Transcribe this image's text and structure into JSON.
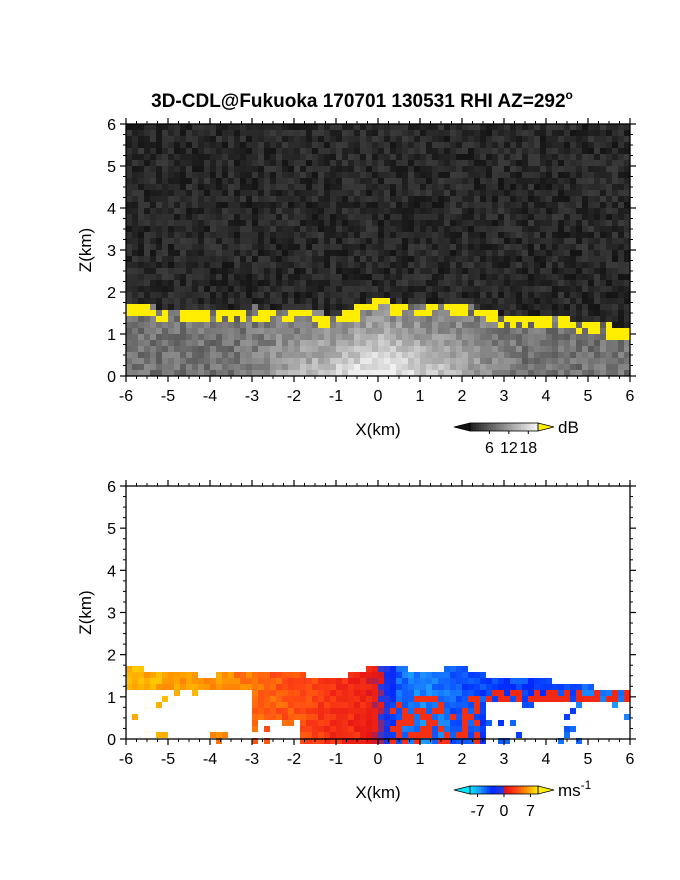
{
  "title": "3D-CDL@Fukuoka 170701 130531 RHI AZ=292",
  "title_degree": "o",
  "chart_data": [
    {
      "type": "heatmap",
      "name": "signal",
      "xlabel": "X(km)",
      "ylabel": "Z(km)",
      "xlim": [
        -6,
        6
      ],
      "ylim": [
        0,
        6
      ],
      "x_ticks": [
        "-6",
        "-5",
        "-4",
        "-3",
        "-2",
        "-1",
        "0",
        "1",
        "2",
        "3",
        "4",
        "5",
        "6"
      ],
      "y_ticks": [
        "0",
        "1",
        "2",
        "3",
        "4",
        "5",
        "6"
      ],
      "colorbar": {
        "unit": "dB",
        "ticks": [
          "6",
          "12",
          "18"
        ],
        "range": [
          0,
          21
        ]
      },
      "saturation_color": "#ffee00",
      "cloud_top_profile": {
        "x": [
          -6,
          -5,
          -4,
          -3,
          -2,
          -1,
          0,
          1,
          2,
          3,
          4,
          5,
          6
        ],
        "z": [
          1.75,
          1.55,
          1.5,
          1.6,
          1.55,
          1.4,
          1.8,
          1.6,
          1.7,
          1.4,
          1.4,
          1.25,
          1.1
        ]
      }
    },
    {
      "type": "heatmap",
      "name": "doppler",
      "xlabel": "X(km)",
      "ylabel": "Z(km)",
      "xlim": [
        -6,
        6
      ],
      "ylim": [
        0,
        6
      ],
      "x_ticks": [
        "-6",
        "-5",
        "-4",
        "-3",
        "-2",
        "-1",
        "0",
        "1",
        "2",
        "3",
        "4",
        "5",
        "6"
      ],
      "y_ticks": [
        "0",
        "1",
        "2",
        "3",
        "4",
        "5",
        "6"
      ],
      "colorbar": {
        "unit": "ms",
        "unit_exp": "-1",
        "ticks": [
          "-7",
          "0",
          "7"
        ],
        "range": [
          -9,
          9
        ]
      },
      "velocity_trend": {
        "x": [
          -6,
          -4,
          -2,
          -1,
          0,
          0.5,
          1,
          2,
          3,
          4,
          5,
          6
        ],
        "v": [
          7,
          6,
          3.5,
          2,
          1,
          -5,
          -6,
          -4.5,
          -4,
          -4,
          -5,
          -6
        ]
      }
    }
  ]
}
